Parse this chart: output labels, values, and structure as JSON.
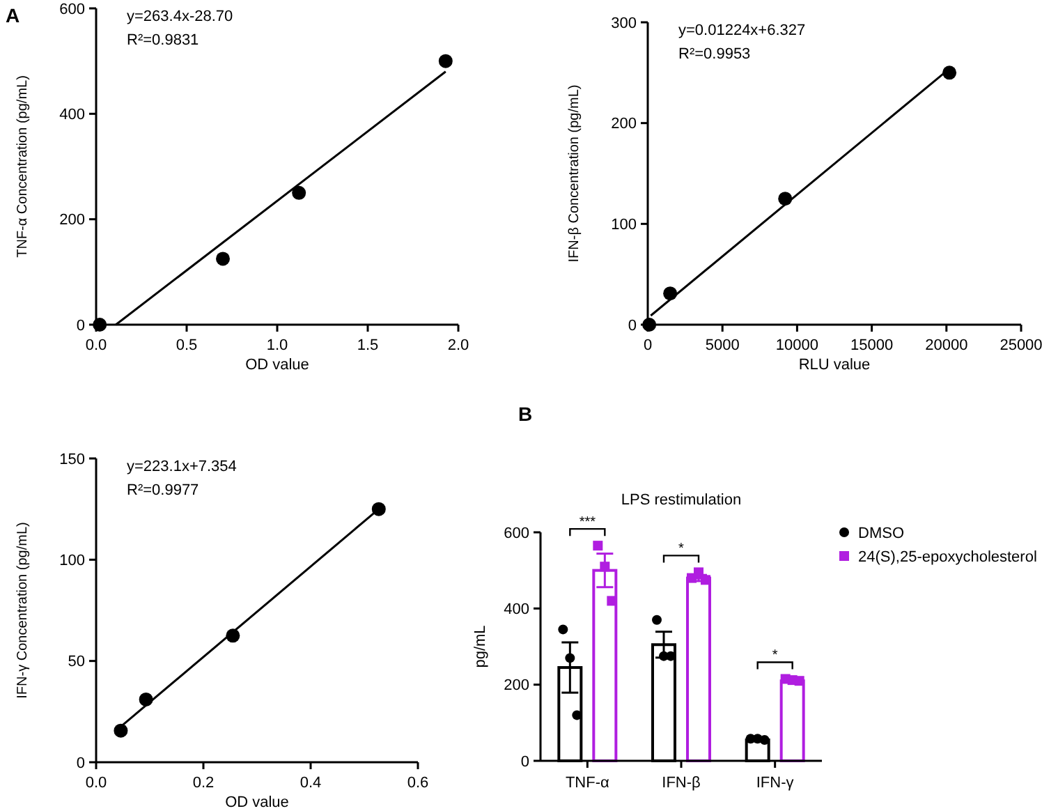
{
  "chart_data": [
    {
      "type": "scatter",
      "title": "A",
      "xlabel": "OD value",
      "ylabel": "TNF-α Concentration (pg/mL)",
      "xlim": [
        0,
        2.0
      ],
      "xticks": [
        {
          "value": 0,
          "label": "0.0"
        },
        0.5,
        {
          "value": 1,
          "label": "1.0"
        },
        1.5,
        {
          "value": 2,
          "label": "2.0"
        }
      ],
      "ylim": [
        0,
        600
      ],
      "yticks": [
        0,
        200,
        400,
        600
      ],
      "annotations": [
        "y=263.4x-28.70",
        "R²=0.9831"
      ],
      "series": [
        {
          "color": "#000000",
          "marker": "circle",
          "x": [
            0.02,
            0.7,
            1.12,
            1.93
          ],
          "values": [
            0,
            125,
            250,
            500
          ]
        },
        {
          "type": "line",
          "color": "#000000",
          "x": [
            0.109,
            1.93
          ],
          "values": [
            0,
            480
          ]
        }
      ]
    },
    {
      "type": "scatter",
      "xlabel": "RLU value",
      "ylabel": "IFN-β Concentration (pg/mL)",
      "xlim": [
        0,
        25000
      ],
      "xticks": [
        0,
        5000,
        10000,
        15000,
        20000,
        25000
      ],
      "ylim": [
        0,
        300
      ],
      "yticks": [
        0,
        100,
        200,
        300
      ],
      "annotations": [
        "y=0.01224x+6.327",
        "R²=0.9953"
      ],
      "series": [
        {
          "color": "#000000",
          "marker": "circle",
          "x": [
            100,
            1500,
            9200,
            20200
          ],
          "values": [
            0,
            31,
            125,
            250
          ]
        },
        {
          "type": "line",
          "color": "#000000",
          "x": [
            200,
            20200
          ],
          "values": [
            9,
            254
          ]
        }
      ]
    },
    {
      "type": "scatter",
      "xlabel": "OD value",
      "ylabel": "IFN-γ Concentration (pg/mL)",
      "xlim": [
        0,
        0.6
      ],
      "xticks": [
        {
          "value": 0,
          "label": "0.0"
        },
        0.2,
        0.4,
        0.6
      ],
      "ylim": [
        0,
        150
      ],
      "yticks": [
        0,
        50,
        100,
        150
      ],
      "annotations": [
        "y=223.1x+7.354",
        "R²=0.9977"
      ],
      "series": [
        {
          "color": "#000000",
          "marker": "circle",
          "x": [
            0.046,
            0.093,
            0.255,
            0.527
          ],
          "values": [
            15.6,
            31,
            62.5,
            125
          ]
        },
        {
          "type": "line",
          "color": "#000000",
          "x": [
            0.046,
            0.527
          ],
          "values": [
            17.6,
            125
          ]
        }
      ]
    },
    {
      "type": "bar",
      "title": "LPS restimulation",
      "ylabel": "pg/mL",
      "categories": [
        "TNF-α",
        "IFN-β",
        "IFN-γ"
      ],
      "ylim": [
        0,
        600
      ],
      "yticks": [
        0,
        200,
        400,
        600
      ],
      "legend": "right",
      "annotations": [
        "B",
        "***",
        "*",
        "*"
      ],
      "series": [
        {
          "name": "DMSO",
          "color": "#000000",
          "values": [
            245,
            305,
            55
          ],
          "errors": [
            66,
            34,
            3
          ]
        },
        {
          "name": "24(S),25-epoxycholesterol",
          "color": "#b01ee0",
          "values": [
            500,
            480,
            210
          ],
          "errors": [
            44,
            8,
            3
          ]
        },
        {
          "type": "scatter",
          "color": "#000000",
          "marker": "circle",
          "x": [
            "TNF-α",
            "TNF-α",
            "TNF-α",
            "IFN-β",
            "IFN-β",
            "IFN-β",
            "IFN-γ",
            "IFN-γ",
            "IFN-γ"
          ],
          "values": [
            345,
            270,
            120,
            370,
            275,
            275,
            58,
            58,
            55
          ]
        },
        {
          "type": "scatter",
          "color": "#b01ee0",
          "marker": "square",
          "x": [
            "TNF-α",
            "TNF-α",
            "TNF-α",
            "IFN-β",
            "IFN-β",
            "IFN-β",
            "IFN-γ",
            "IFN-γ",
            "IFN-γ"
          ],
          "values": [
            565,
            510,
            420,
            480,
            495,
            475,
            215,
            212,
            210
          ]
        }
      ]
    }
  ]
}
